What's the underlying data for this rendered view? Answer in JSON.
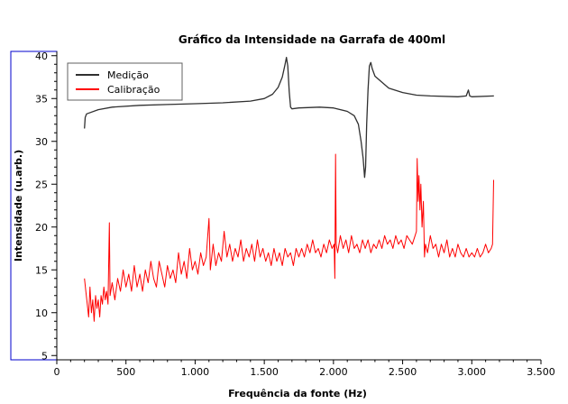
{
  "chart_data": {
    "type": "line",
    "title": "Gráfico da Intensidade na Garrafa de 400ml",
    "xlabel": "Frequência da fonte (Hz)",
    "ylabel": "Intensidade (u.arb.)",
    "xlim": [
      0,
      3500
    ],
    "ylim": [
      4.5,
      40.5
    ],
    "x_ticks": [
      0,
      500,
      1000,
      1500,
      2000,
      2500,
      3000,
      3500
    ],
    "x_tick_labels": [
      "0",
      "500",
      "1.000",
      "1.500",
      "2.000",
      "2.500",
      "3.000",
      "3.500"
    ],
    "y_ticks": [
      5,
      10,
      15,
      20,
      25,
      30,
      35,
      40
    ],
    "y_tick_labels": [
      "5",
      "10",
      "15",
      "20",
      "25",
      "30",
      "35",
      "40"
    ],
    "grid": false,
    "legend_position": "top-left",
    "colors": {
      "frame": "#0000cc",
      "medicao": "#303030",
      "calibracao": "#ff0000"
    },
    "series": [
      {
        "name": "Medição",
        "color": "#303030",
        "points": [
          [
            200,
            31.5
          ],
          [
            205,
            32.8
          ],
          [
            215,
            33.2
          ],
          [
            300,
            33.7
          ],
          [
            400,
            34.0
          ],
          [
            600,
            34.2
          ],
          [
            800,
            34.3
          ],
          [
            1000,
            34.4
          ],
          [
            1200,
            34.5
          ],
          [
            1400,
            34.7
          ],
          [
            1500,
            35.0
          ],
          [
            1560,
            35.5
          ],
          [
            1600,
            36.3
          ],
          [
            1630,
            37.5
          ],
          [
            1650,
            39.0
          ],
          [
            1660,
            39.8
          ],
          [
            1670,
            38.8
          ],
          [
            1680,
            35.8
          ],
          [
            1690,
            34.0
          ],
          [
            1700,
            33.8
          ],
          [
            1750,
            33.9
          ],
          [
            1900,
            34.0
          ],
          [
            2000,
            33.9
          ],
          [
            2100,
            33.5
          ],
          [
            2150,
            33.0
          ],
          [
            2180,
            32.0
          ],
          [
            2200,
            30.0
          ],
          [
            2215,
            28.0
          ],
          [
            2225,
            25.8
          ],
          [
            2232,
            27.0
          ],
          [
            2240,
            32.0
          ],
          [
            2250,
            36.0
          ],
          [
            2260,
            38.8
          ],
          [
            2270,
            39.2
          ],
          [
            2280,
            38.5
          ],
          [
            2300,
            37.6
          ],
          [
            2400,
            36.2
          ],
          [
            2500,
            35.7
          ],
          [
            2600,
            35.4
          ],
          [
            2700,
            35.3
          ],
          [
            2900,
            35.2
          ],
          [
            2960,
            35.3
          ],
          [
            2975,
            36.0
          ],
          [
            2985,
            35.3
          ],
          [
            3000,
            35.2
          ],
          [
            3160,
            35.3
          ]
        ]
      },
      {
        "name": "Calibração",
        "color": "#ff0000",
        "points": [
          [
            200,
            14.0
          ],
          [
            210,
            12.5
          ],
          [
            220,
            11.0
          ],
          [
            230,
            9.5
          ],
          [
            240,
            13.0
          ],
          [
            250,
            10.0
          ],
          [
            260,
            11.5
          ],
          [
            270,
            9.0
          ],
          [
            280,
            12.0
          ],
          [
            290,
            10.5
          ],
          [
            300,
            11.5
          ],
          [
            310,
            9.5
          ],
          [
            320,
            12.0
          ],
          [
            330,
            11.0
          ],
          [
            340,
            13.0
          ],
          [
            350,
            11.5
          ],
          [
            360,
            12.5
          ],
          [
            370,
            11.0
          ],
          [
            380,
            20.5
          ],
          [
            385,
            12.0
          ],
          [
            400,
            13.5
          ],
          [
            420,
            11.5
          ],
          [
            440,
            14.0
          ],
          [
            460,
            12.5
          ],
          [
            480,
            15.0
          ],
          [
            500,
            13.0
          ],
          [
            520,
            14.5
          ],
          [
            540,
            12.5
          ],
          [
            560,
            15.5
          ],
          [
            580,
            13.0
          ],
          [
            600,
            14.5
          ],
          [
            620,
            12.5
          ],
          [
            640,
            15.0
          ],
          [
            660,
            13.5
          ],
          [
            680,
            16.0
          ],
          [
            700,
            14.0
          ],
          [
            720,
            13.0
          ],
          [
            740,
            16.0
          ],
          [
            760,
            14.5
          ],
          [
            780,
            13.0
          ],
          [
            800,
            15.5
          ],
          [
            820,
            14.0
          ],
          [
            840,
            15.0
          ],
          [
            860,
            13.5
          ],
          [
            880,
            17.0
          ],
          [
            900,
            14.5
          ],
          [
            920,
            16.0
          ],
          [
            940,
            14.0
          ],
          [
            960,
            17.5
          ],
          [
            980,
            15.0
          ],
          [
            1000,
            16.0
          ],
          [
            1020,
            14.5
          ],
          [
            1040,
            17.0
          ],
          [
            1060,
            15.5
          ],
          [
            1080,
            16.5
          ],
          [
            1100,
            21.0
          ],
          [
            1110,
            15.0
          ],
          [
            1130,
            18.0
          ],
          [
            1150,
            15.5
          ],
          [
            1170,
            17.0
          ],
          [
            1190,
            16.0
          ],
          [
            1210,
            19.5
          ],
          [
            1230,
            16.5
          ],
          [
            1250,
            18.0
          ],
          [
            1270,
            16.0
          ],
          [
            1290,
            17.5
          ],
          [
            1310,
            16.5
          ],
          [
            1330,
            18.5
          ],
          [
            1350,
            16.0
          ],
          [
            1370,
            17.5
          ],
          [
            1390,
            16.5
          ],
          [
            1410,
            18.0
          ],
          [
            1430,
            16.0
          ],
          [
            1450,
            18.5
          ],
          [
            1470,
            16.5
          ],
          [
            1490,
            17.5
          ],
          [
            1510,
            16.0
          ],
          [
            1530,
            17.0
          ],
          [
            1550,
            15.5
          ],
          [
            1570,
            17.5
          ],
          [
            1590,
            16.0
          ],
          [
            1610,
            17.0
          ],
          [
            1630,
            15.5
          ],
          [
            1650,
            17.5
          ],
          [
            1670,
            16.5
          ],
          [
            1690,
            17.0
          ],
          [
            1710,
            15.5
          ],
          [
            1730,
            17.5
          ],
          [
            1750,
            16.5
          ],
          [
            1770,
            17.5
          ],
          [
            1790,
            16.5
          ],
          [
            1810,
            18.0
          ],
          [
            1830,
            17.0
          ],
          [
            1850,
            18.5
          ],
          [
            1870,
            17.0
          ],
          [
            1890,
            17.5
          ],
          [
            1910,
            16.5
          ],
          [
            1930,
            18.0
          ],
          [
            1950,
            17.0
          ],
          [
            1970,
            18.5
          ],
          [
            1990,
            17.5
          ],
          [
            2005,
            18.0
          ],
          [
            2010,
            14.0
          ],
          [
            2015,
            28.5
          ],
          [
            2020,
            18.0
          ],
          [
            2030,
            17.0
          ],
          [
            2050,
            19.0
          ],
          [
            2070,
            17.5
          ],
          [
            2090,
            18.5
          ],
          [
            2110,
            17.0
          ],
          [
            2130,
            19.0
          ],
          [
            2150,
            17.5
          ],
          [
            2170,
            18.0
          ],
          [
            2190,
            17.0
          ],
          [
            2210,
            18.5
          ],
          [
            2230,
            17.5
          ],
          [
            2250,
            18.5
          ],
          [
            2270,
            17.0
          ],
          [
            2290,
            18.0
          ],
          [
            2310,
            17.5
          ],
          [
            2330,
            18.5
          ],
          [
            2350,
            17.5
          ],
          [
            2370,
            19.0
          ],
          [
            2390,
            18.0
          ],
          [
            2410,
            18.5
          ],
          [
            2430,
            17.5
          ],
          [
            2450,
            19.0
          ],
          [
            2470,
            18.0
          ],
          [
            2490,
            18.5
          ],
          [
            2510,
            17.5
          ],
          [
            2530,
            19.0
          ],
          [
            2550,
            18.5
          ],
          [
            2570,
            18.0
          ],
          [
            2590,
            19.0
          ],
          [
            2600,
            19.5
          ],
          [
            2605,
            28.0
          ],
          [
            2612,
            23.0
          ],
          [
            2618,
            26.0
          ],
          [
            2625,
            22.0
          ],
          [
            2632,
            25.0
          ],
          [
            2640,
            20.0
          ],
          [
            2650,
            23.0
          ],
          [
            2658,
            16.5
          ],
          [
            2665,
            18.0
          ],
          [
            2680,
            17.0
          ],
          [
            2700,
            19.0
          ],
          [
            2720,
            17.5
          ],
          [
            2740,
            18.0
          ],
          [
            2760,
            16.5
          ],
          [
            2780,
            18.0
          ],
          [
            2800,
            17.0
          ],
          [
            2820,
            18.5
          ],
          [
            2840,
            16.5
          ],
          [
            2860,
            17.5
          ],
          [
            2880,
            16.5
          ],
          [
            2900,
            18.0
          ],
          [
            2920,
            17.0
          ],
          [
            2940,
            16.5
          ],
          [
            2960,
            17.5
          ],
          [
            2980,
            16.5
          ],
          [
            3000,
            17.0
          ],
          [
            3020,
            16.5
          ],
          [
            3040,
            17.5
          ],
          [
            3060,
            16.5
          ],
          [
            3080,
            17.0
          ],
          [
            3100,
            18.0
          ],
          [
            3120,
            17.0
          ],
          [
            3140,
            17.5
          ],
          [
            3150,
            18.0
          ],
          [
            3158,
            25.5
          ]
        ]
      }
    ]
  }
}
